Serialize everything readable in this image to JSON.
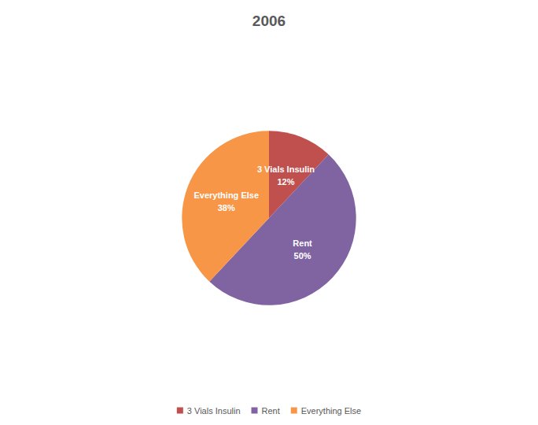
{
  "chart_data": {
    "type": "pie",
    "title": "2006",
    "categories": [
      "3 Vials Insulin",
      "Rent",
      "Everything Else"
    ],
    "values": [
      12,
      50,
      38
    ],
    "value_labels": [
      "12%",
      "50%",
      "38%"
    ],
    "colors": [
      "#c0504d",
      "#8064a2",
      "#f79646"
    ],
    "data_labels": true,
    "legend": "bottom"
  }
}
